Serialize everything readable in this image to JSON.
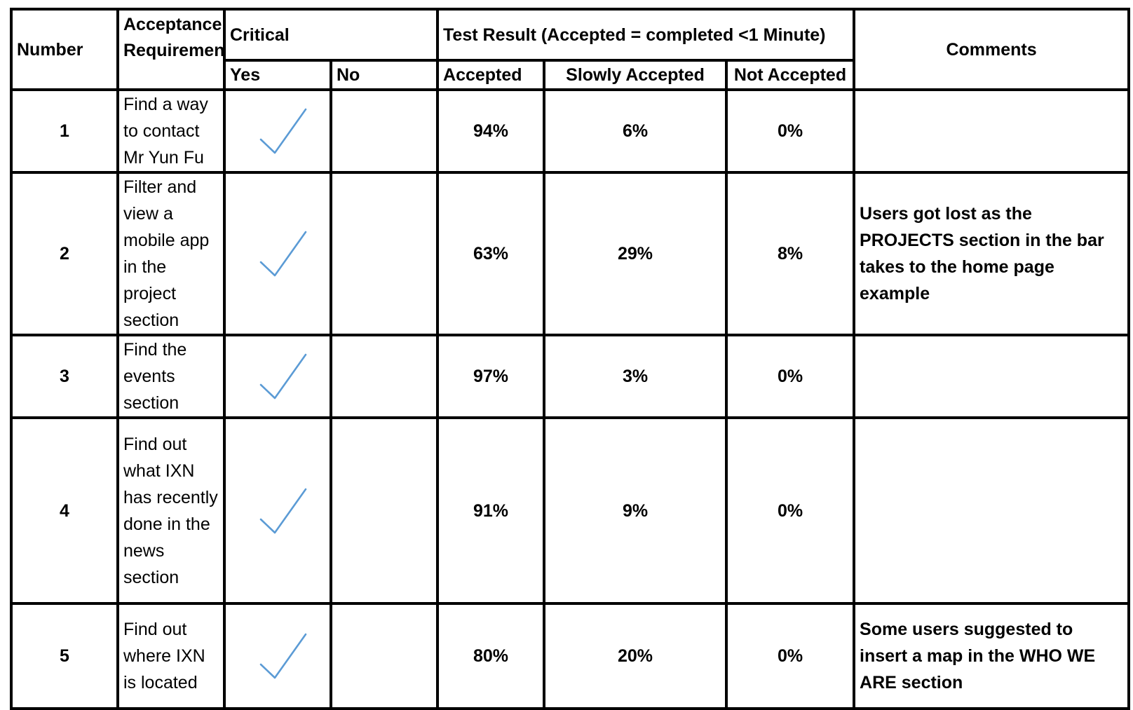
{
  "headers": {
    "number": "Number",
    "acceptance_requirement": "Acceptance Requirement",
    "critical": "Critical",
    "yes": "Yes",
    "no": "No",
    "test_result": "Test Result (Accepted = completed <1 Minute)",
    "accepted": "Accepted",
    "slowly_accepted": "Slowly Accepted",
    "not_accepted": "Not Accepted",
    "comments": "Comments"
  },
  "check_color": "#5b9bd5",
  "rows": [
    {
      "number": "1",
      "requirement": "Find a way to contact Mr Yun Fu",
      "critical_yes": true,
      "accepted": "94%",
      "slowly_accepted": "6%",
      "not_accepted": "0%",
      "comment": ""
    },
    {
      "number": "2",
      "requirement": "Filter and view a mobile app in the project section",
      "critical_yes": true,
      "accepted": "63%",
      "slowly_accepted": "29%",
      "not_accepted": "8%",
      "comment": "Users got lost as the PROJECTS section in the bar takes to the home page example"
    },
    {
      "number": "3",
      "requirement": "Find the events section",
      "critical_yes": true,
      "accepted": "97%",
      "slowly_accepted": "3%",
      "not_accepted": "0%",
      "comment": ""
    },
    {
      "number": "4",
      "requirement": "Find out what IXN has recently done in the news section",
      "critical_yes": true,
      "accepted": "91%",
      "slowly_accepted": "9%",
      "not_accepted": "0%",
      "comment": ""
    },
    {
      "number": "5",
      "requirement": "Find out where IXN is located",
      "critical_yes": true,
      "accepted": "80%",
      "slowly_accepted": "20%",
      "not_accepted": "0%",
      "comment": "Some users suggested to insert a map in the WHO WE ARE section"
    }
  ]
}
